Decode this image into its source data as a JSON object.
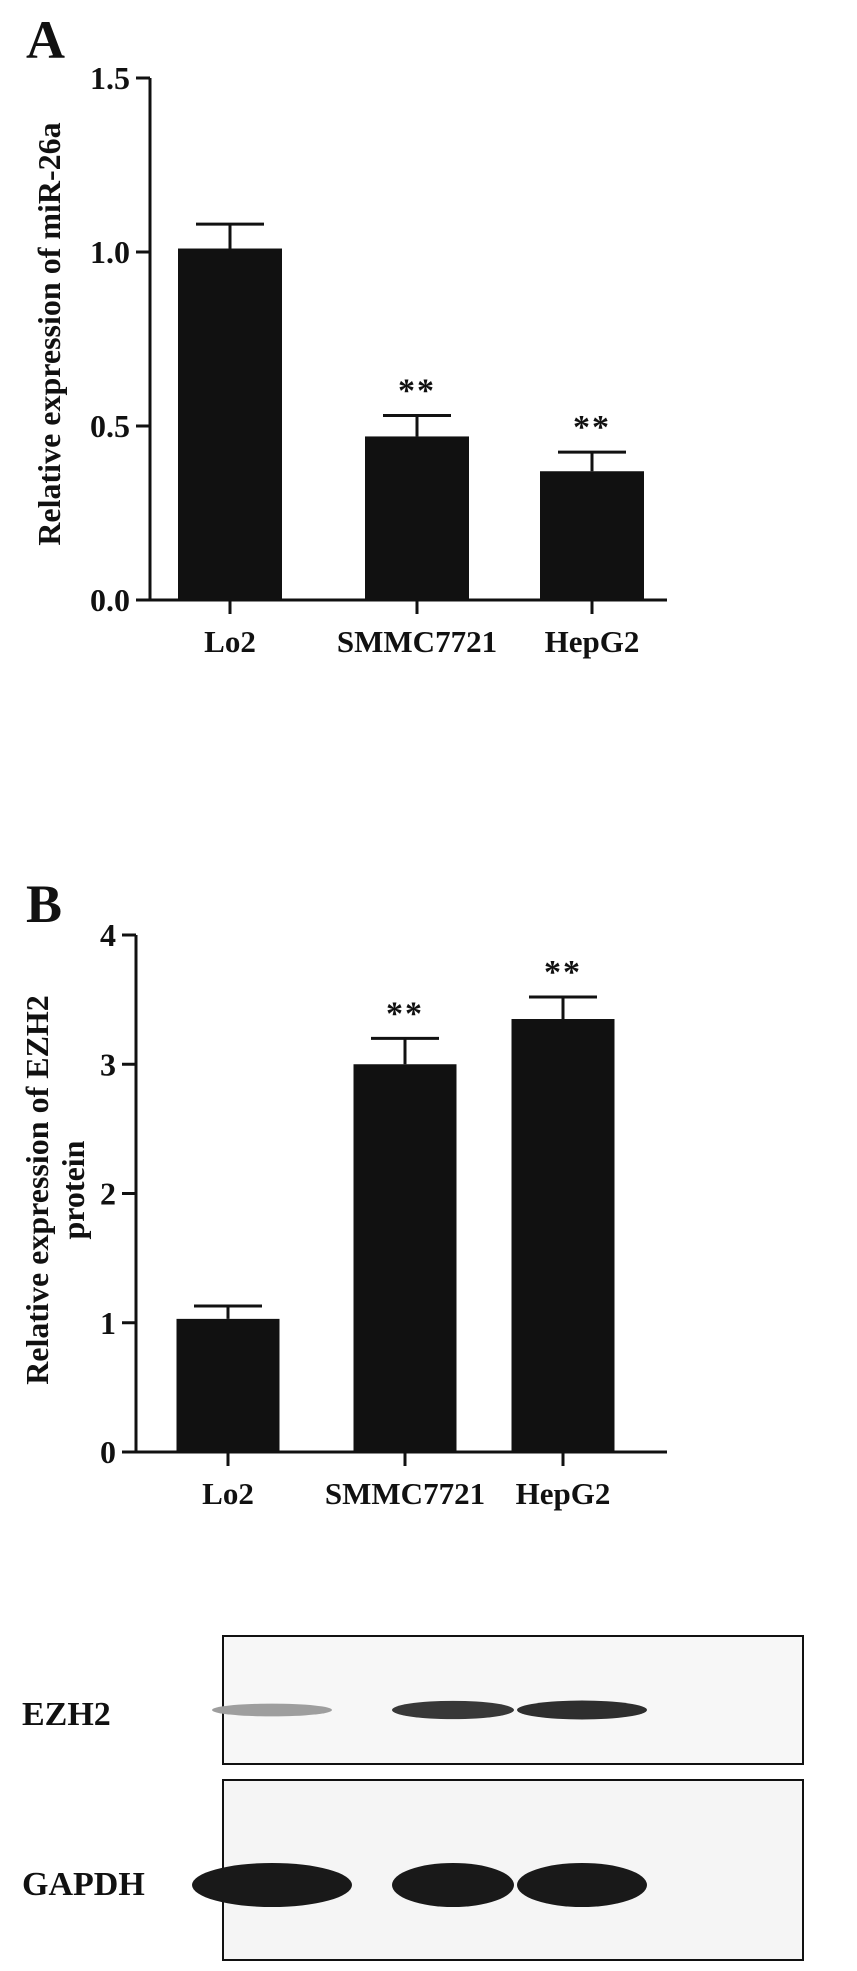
{
  "chart_data": [
    {
      "panel": "A",
      "type": "bar",
      "categories": [
        "Lo2",
        "SMMC7721",
        "HepG2"
      ],
      "values": [
        1.01,
        0.47,
        0.37
      ],
      "error": [
        0.07,
        0.06,
        0.055
      ],
      "annotations": [
        "",
        "**",
        "**"
      ],
      "xlabel": "",
      "ylabel": "Relative expression of miR-26a",
      "ylabel_lines": [
        "Relative expression of miR-26a"
      ],
      "ylim": [
        0,
        1.5
      ],
      "yticks": [
        0,
        0.5,
        1.0,
        1.5
      ],
      "ytick_labels": [
        "0.0",
        "0.5",
        "1.0",
        "1.5"
      ],
      "grid": false,
      "bar_color": "#111111"
    },
    {
      "panel": "B",
      "type": "bar",
      "categories": [
        "Lo2",
        "SMMC7721",
        "HepG2"
      ],
      "values": [
        1.03,
        3.0,
        3.35
      ],
      "error": [
        0.1,
        0.2,
        0.17
      ],
      "annotations": [
        "",
        "**",
        "**"
      ],
      "xlabel": "",
      "ylabel": "Relative expression of EZH2 protein",
      "ylabel_lines": [
        "Relative expression of EZH2",
        "protein"
      ],
      "ylim": [
        0,
        4
      ],
      "yticks": [
        0,
        1,
        2,
        3,
        4
      ],
      "ytick_labels": [
        "0",
        "1",
        "2",
        "3",
        "4"
      ],
      "grid": false,
      "bar_color": "#111111"
    }
  ],
  "western_blot": {
    "rows": [
      {
        "label": "EZH2",
        "band_intensity": [
          0.35,
          0.85,
          0.9
        ]
      },
      {
        "label": "GAPDH",
        "band_intensity": [
          1.0,
          1.0,
          1.0
        ]
      }
    ]
  },
  "colors": {
    "ink": "#111111",
    "background": "#ffffff"
  }
}
